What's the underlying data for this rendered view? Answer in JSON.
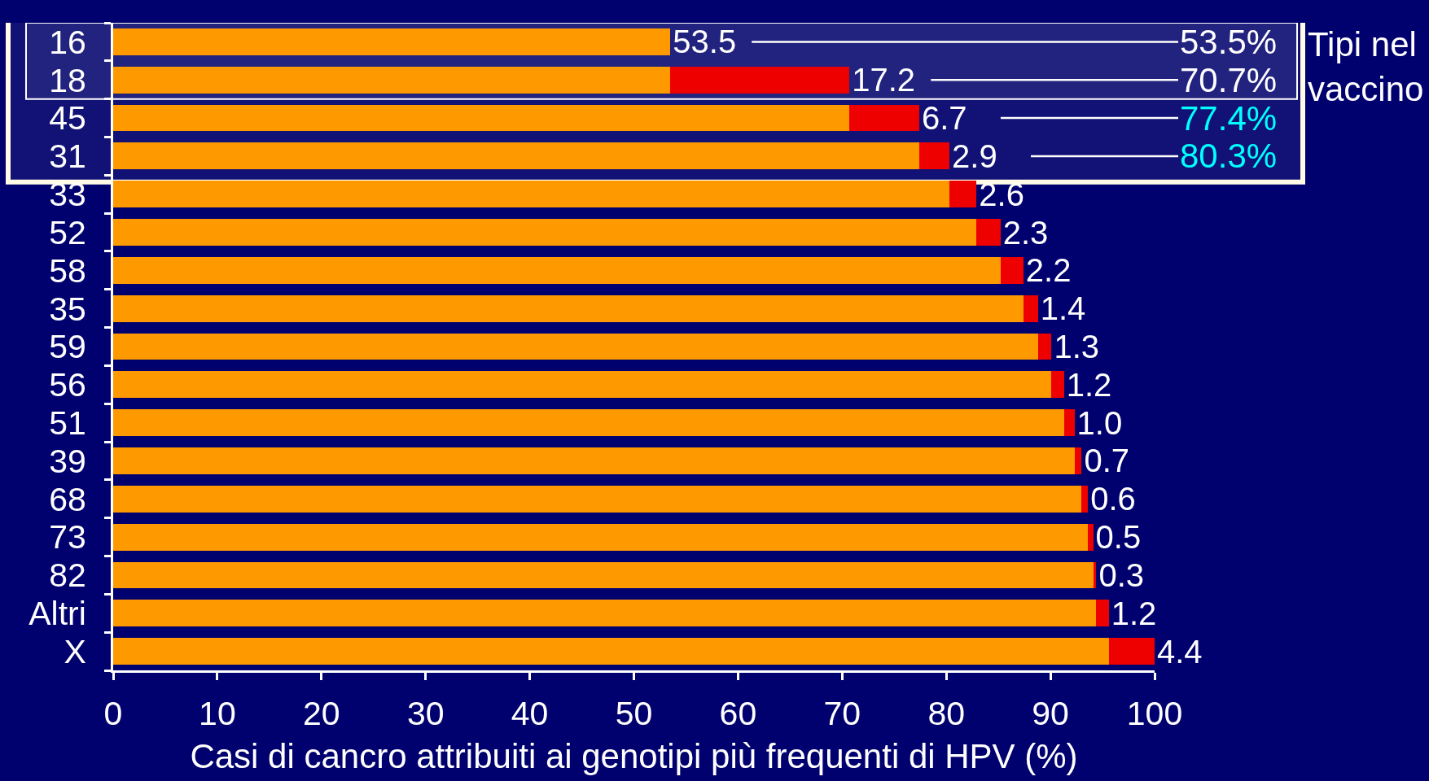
{
  "chart_data": {
    "type": "bar",
    "orientation": "horizontal",
    "stacked": true,
    "xlabel": "Casi di cancro attribuiti ai genotipi più frequenti di HPV (%)",
    "categories": [
      "16",
      "18",
      "45",
      "31",
      "33",
      "52",
      "58",
      "35",
      "59",
      "56",
      "51",
      "39",
      "68",
      "73",
      "82",
      "Altri",
      "X"
    ],
    "series": [
      {
        "color": "#ff9900",
        "values": [
          53.5,
          53.5,
          70.7,
          77.4,
          80.3,
          82.9,
          85.2,
          87.4,
          88.8,
          90.1,
          91.3,
          92.3,
          93.0,
          93.6,
          94.1,
          94.4,
          95.6
        ],
        "value_labels": [
          "53.5",
          null,
          null,
          null,
          null,
          null,
          null,
          null,
          null,
          null,
          null,
          null,
          null,
          null,
          null,
          null,
          null
        ]
      },
      {
        "color": "#ee0000",
        "values": [
          null,
          17.2,
          6.7,
          2.9,
          2.6,
          2.3,
          2.2,
          1.4,
          1.3,
          1.2,
          1.0,
          0.7,
          0.6,
          0.5,
          0.3,
          1.2,
          4.4
        ],
        "value_labels": [
          null,
          "17.2",
          "6.7",
          "2.9",
          "2.6",
          "2.3",
          "2.2",
          "1.4",
          "1.3",
          "1.2",
          "1.0",
          "0.7",
          "0.6",
          "0.5",
          "0.3",
          "1.2",
          "4.4"
        ]
      }
    ],
    "xlim": [
      0,
      100
    ],
    "xticks": [
      0,
      10,
      20,
      30,
      40,
      50,
      60,
      70,
      80,
      90,
      100
    ],
    "grid": false,
    "bands": [
      {
        "axis": "y",
        "from": "16",
        "to": "18",
        "label": "Tipi nel vaccino",
        "color": "#ffffff"
      },
      {
        "axis": "y",
        "from": "16",
        "to": "31",
        "color": "#fffbe6"
      }
    ],
    "annotations": [
      {
        "text": "53.5%",
        "x": 53.5,
        "y": "16"
      },
      {
        "text": "70.7%",
        "x": 70.7,
        "y": "18"
      },
      {
        "text": "77.4%",
        "x": 77.4,
        "y": "45"
      },
      {
        "text": "80.3%",
        "x": 80.3,
        "y": "31"
      }
    ]
  }
}
